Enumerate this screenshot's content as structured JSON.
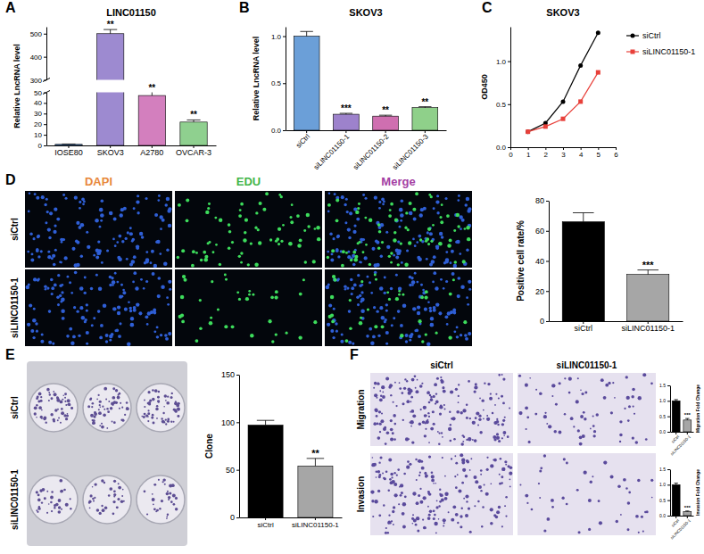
{
  "chart_data": [
    {
      "type": "bar",
      "panel": "A",
      "title": "LINC01150",
      "y_label": "Relative LncRNA level",
      "categories": [
        "IOSE80",
        "SKOV3",
        "A2780",
        "OVCAR-3"
      ],
      "values": [
        1,
        500,
        47,
        22
      ],
      "errors": [
        0.3,
        18,
        4,
        2
      ],
      "significance": [
        null,
        "**",
        "**",
        "**"
      ],
      "colors": [
        "#5b8fd1",
        "#9d8ad0",
        "#d37fbe",
        "#8fd08f"
      ],
      "y_segments": [
        {
          "ylim": [
            0,
            50
          ],
          "yticks": [
            0,
            10,
            20,
            30,
            40,
            50
          ]
        },
        {
          "ylim": [
            300,
            530
          ],
          "yticks": [
            300,
            400,
            500
          ]
        }
      ]
    },
    {
      "type": "bar",
      "panel": "B",
      "title": "SKOV3",
      "y_label": "Relative LncRNA level",
      "categories": [
        "siCtrl",
        "siLINC01150-1",
        "siLINC01150-2",
        "siLINC01150-3"
      ],
      "values": [
        1.0,
        0.17,
        0.15,
        0.24
      ],
      "errors": [
        0.05,
        0.01,
        0.01,
        0.01
      ],
      "significance": [
        null,
        "***",
        "**",
        "**"
      ],
      "colors": [
        "#6b9fd8",
        "#9d82cc",
        "#cf6fb0",
        "#8fd08a"
      ],
      "ylim": [
        0,
        1.1
      ],
      "yticks": [
        {
          "value": 0,
          "label": "0.0"
        },
        {
          "value": 0.5,
          "label": "0.5"
        },
        {
          "value": 1,
          "label": "1.0"
        }
      ]
    },
    {
      "type": "line",
      "panel": "C",
      "title": "SKOV3",
      "y_label": "OD450",
      "x": [
        1,
        2,
        3,
        4,
        5
      ],
      "series": [
        {
          "name": "siCtrl",
          "color": "#000000",
          "marker": "circle",
          "values": [
            0.18,
            0.28,
            0.53,
            0.95,
            1.33
          ]
        },
        {
          "name": "siLINC01150-1",
          "color": "#e8403a",
          "marker": "square",
          "values": [
            0.18,
            0.24,
            0.33,
            0.53,
            0.87
          ]
        }
      ],
      "xlim": [
        0,
        6
      ],
      "xticks": [
        0,
        1,
        2,
        3,
        4,
        5,
        6
      ],
      "ylim": [
        0,
        1.4
      ],
      "yticks": [
        {
          "value": 0,
          "label": "0.0"
        },
        {
          "value": 0.5,
          "label": "0.5"
        },
        {
          "value": 1,
          "label": "1.0"
        }
      ],
      "legend": "right"
    },
    {
      "type": "bar",
      "y_label": "Positive cell rate/%",
      "categories": [
        "siCtrl",
        "siLINC01150-1"
      ],
      "values": [
        66,
        31
      ],
      "errors": [
        6,
        3
      ],
      "significance": [
        null,
        "***"
      ],
      "colors": [
        "#000000",
        "#a6a6a6"
      ],
      "ylim": [
        0,
        80
      ],
      "yticks": [
        0,
        20,
        40,
        60,
        80
      ]
    },
    {
      "type": "bar",
      "y_label": "Clone",
      "categories": [
        "siCtrl",
        "siLINC01150-1"
      ],
      "values": [
        97,
        54
      ],
      "errors": [
        5,
        8
      ],
      "significance": [
        null,
        "**"
      ],
      "colors": [
        "#000000",
        "#a6a6a6"
      ],
      "ylim": [
        0,
        150
      ],
      "yticks": [
        0,
        50,
        100,
        150
      ]
    },
    {
      "type": "bar",
      "y_label": "Migration Fold Change",
      "categories": [
        "siCtrl",
        "siLINC01150-1"
      ],
      "values": [
        1.0,
        0.38
      ],
      "errors": [
        0.04,
        0.05
      ],
      "significance": [
        null,
        "***"
      ],
      "colors": [
        "#000000",
        "#a6a6a6"
      ],
      "ylim": [
        0,
        1.5
      ],
      "yticks": [
        {
          "value": 0,
          "label": "0.0"
        },
        {
          "value": 0.5,
          "label": "0.5"
        },
        {
          "value": 1,
          "label": "1.0"
        },
        {
          "value": 1.5,
          "label": "1.5"
        }
      ]
    },
    {
      "type": "bar",
      "y_label": "Invasion Fold Change",
      "categories": [
        "siCtrl",
        "siLINC01150-1"
      ],
      "values": [
        1.0,
        0.13
      ],
      "errors": [
        0.05,
        0.02
      ],
      "significance": [
        null,
        "***"
      ],
      "colors": [
        "#000000",
        "#a6a6a6"
      ],
      "ylim": [
        0,
        1.5
      ],
      "yticks": [
        {
          "value": 0,
          "label": "0.0"
        },
        {
          "value": 0.5,
          "label": "0.5"
        },
        {
          "value": 1,
          "label": "1.0"
        },
        {
          "value": 1.5,
          "label": "1.5"
        }
      ]
    }
  ],
  "image_panels": [
    {
      "panel": "D",
      "columns": [
        "DAPI",
        "EDU",
        "Merge"
      ],
      "rows": [
        "siCtrl",
        "siLINC01150-1"
      ]
    },
    {
      "panel": "E",
      "rows": [
        "siCtrl",
        "siLINC01150-1"
      ]
    },
    {
      "panel": "F",
      "columns": [
        "siCtrl",
        "siLINC01150-1"
      ],
      "rows": [
        "Migration",
        "Invasion"
      ]
    }
  ]
}
